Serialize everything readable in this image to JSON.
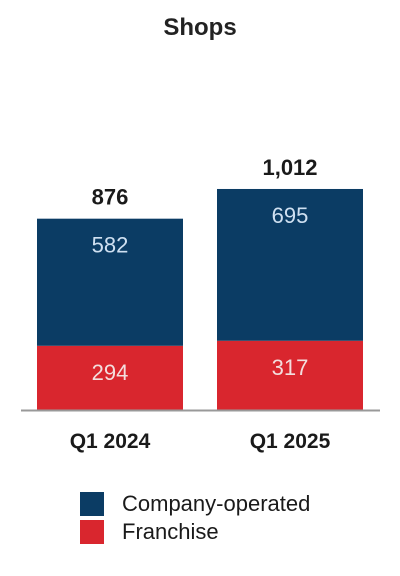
{
  "chart_data": {
    "type": "bar",
    "stacked": true,
    "title": "Shops",
    "categories": [
      "Q1 2024",
      "Q1 2025"
    ],
    "series": [
      {
        "name": "Franchise",
        "values": [
          294,
          317
        ],
        "color": "#d9262e"
      },
      {
        "name": "Company-operated",
        "values": [
          582,
          695
        ],
        "color": "#0b3c64"
      }
    ],
    "totals": [
      876,
      1012
    ],
    "total_labels": [
      "876",
      "1,012"
    ],
    "ylim": [
      0,
      1300
    ],
    "grid": false,
    "legend_position": "bottom"
  }
}
